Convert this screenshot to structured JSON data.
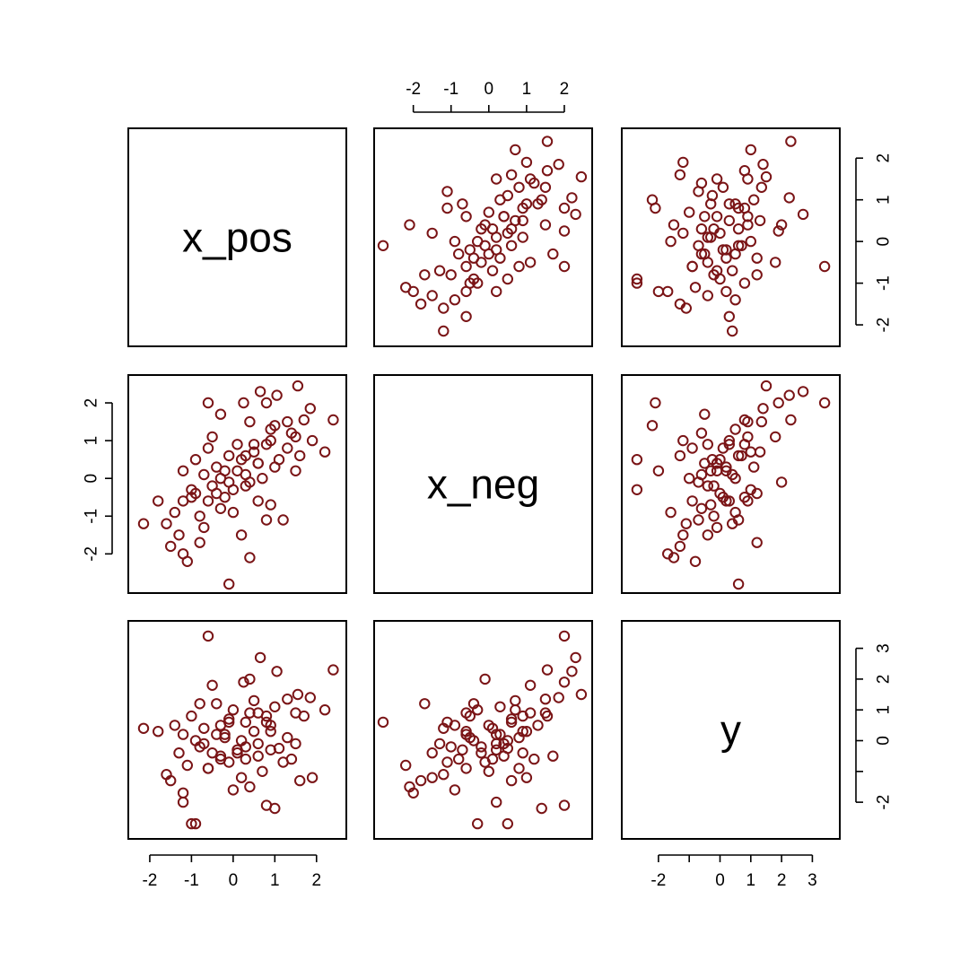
{
  "chart_data": {
    "type": "scatter-matrix",
    "point_color": "#7a1416",
    "marker": "open-circle",
    "variables": [
      {
        "name": "x_pos",
        "range": [
          -2.3,
          2.5
        ],
        "ticks": [
          -2,
          -1,
          0,
          1,
          2
        ],
        "tick_labels": [
          "-2",
          "-1",
          "0",
          "1",
          "2"
        ]
      },
      {
        "name": "x_neg",
        "range": [
          -2.8,
          2.5
        ],
        "ticks": [
          -2,
          -1,
          0,
          1,
          2
        ],
        "tick_labels": [
          "-2",
          "-1",
          "0",
          "1",
          "2"
        ]
      },
      {
        "name": "y",
        "range": [
          -2.9,
          3.6
        ],
        "ticks": [
          -2,
          -1,
          0,
          1,
          2,
          3
        ],
        "tick_labels": [
          "-2",
          "",
          "0",
          "1",
          "2",
          "3"
        ]
      }
    ],
    "axes": {
      "top": [
        {
          "col": 1,
          "var": 1
        }
      ],
      "bottom": [
        {
          "col": 0,
          "var": 0
        },
        {
          "col": 2,
          "var": 2
        }
      ],
      "left": [
        {
          "row": 1,
          "var": 1
        }
      ],
      "right": [
        {
          "row": 0,
          "var": 0
        },
        {
          "row": 2,
          "var": 2
        }
      ]
    },
    "observations": [
      {
        "x_pos": 1.55,
        "x_neg": 2.45,
        "y": 1.5
      },
      {
        "x_pos": 1.85,
        "x_neg": 1.85,
        "y": 1.4
      },
      {
        "x_pos": 1.3,
        "x_neg": 1.5,
        "y": 1.35
      },
      {
        "x_pos": 0.65,
        "x_neg": 2.3,
        "y": 2.7
      },
      {
        "x_pos": 2.4,
        "x_neg": 1.55,
        "y": 2.3
      },
      {
        "x_pos": 0.25,
        "x_neg": 2.0,
        "y": 1.9
      },
      {
        "x_pos": 1.05,
        "x_neg": 2.2,
        "y": 2.25
      },
      {
        "x_pos": -0.6,
        "x_neg": 2.0,
        "y": 3.4
      },
      {
        "x_pos": 1.5,
        "x_neg": 1.1,
        "y": 0.9
      },
      {
        "x_pos": 1.7,
        "x_neg": 1.55,
        "y": 0.8
      },
      {
        "x_pos": 0.9,
        "x_neg": 1.3,
        "y": 0.5
      },
      {
        "x_pos": 0.4,
        "x_neg": 1.5,
        "y": 0.9
      },
      {
        "x_pos": 1.9,
        "x_neg": 1.0,
        "y": -1.2
      },
      {
        "x_pos": 0.8,
        "x_neg": 0.9,
        "y": 0.8
      },
      {
        "x_pos": 0.9,
        "x_neg": 1.0,
        "y": 0.3
      },
      {
        "x_pos": 1.3,
        "x_neg": 0.8,
        "y": 0.1
      },
      {
        "x_pos": 1.5,
        "x_neg": 0.2,
        "y": -0.1
      },
      {
        "x_pos": 1.1,
        "x_neg": 0.5,
        "y": -0.25
      },
      {
        "x_pos": 0.5,
        "x_neg": 0.9,
        "y": 0.3
      },
      {
        "x_pos": 0.6,
        "x_neg": 0.4,
        "y": -0.5
      },
      {
        "x_pos": 0.2,
        "x_neg": 0.5,
        "y": 0.0
      },
      {
        "x_pos": 0.3,
        "x_neg": 0.1,
        "y": -0.6
      },
      {
        "x_pos": -0.1,
        "x_neg": 0.6,
        "y": 0.7
      },
      {
        "x_pos": 0.1,
        "x_neg": 0.2,
        "y": -0.3
      },
      {
        "x_pos": -0.3,
        "x_neg": 0.0,
        "y": 0.5
      },
      {
        "x_pos": -0.1,
        "x_neg": -0.1,
        "y": -0.7
      },
      {
        "x_pos": -0.4,
        "x_neg": 0.3,
        "y": 0.2
      },
      {
        "x_pos": -0.5,
        "x_neg": -0.2,
        "y": -0.4
      },
      {
        "x_pos": -0.7,
        "x_neg": 0.1,
        "y": 0.4
      },
      {
        "x_pos": -0.2,
        "x_neg": -0.5,
        "y": 0.1
      },
      {
        "x_pos": -0.6,
        "x_neg": -0.6,
        "y": -0.9
      },
      {
        "x_pos": 0.0,
        "x_neg": -0.3,
        "y": 1.0
      },
      {
        "x_pos": -0.9,
        "x_neg": -0.4,
        "y": 0.0
      },
      {
        "x_pos": -0.3,
        "x_neg": -0.8,
        "y": -0.6
      },
      {
        "x_pos": -1.0,
        "x_neg": -0.5,
        "y": 0.8
      },
      {
        "x_pos": -0.8,
        "x_neg": -1.0,
        "y": -0.2
      },
      {
        "x_pos": -1.2,
        "x_neg": -0.6,
        "y": 0.2
      },
      {
        "x_pos": -1.4,
        "x_neg": -0.9,
        "y": 0.5
      },
      {
        "x_pos": -1.6,
        "x_neg": -1.2,
        "y": -1.1
      },
      {
        "x_pos": -1.3,
        "x_neg": -1.5,
        "y": -0.4
      },
      {
        "x_pos": -1.8,
        "x_neg": -0.6,
        "y": 0.3
      },
      {
        "x_pos": -2.15,
        "x_neg": -1.2,
        "y": 0.4
      },
      {
        "x_pos": -1.1,
        "x_neg": -2.2,
        "y": -0.8
      },
      {
        "x_pos": -1.5,
        "x_neg": -1.8,
        "y": -1.3
      },
      {
        "x_pos": -1.2,
        "x_neg": -2.0,
        "y": -1.7
      },
      {
        "x_pos": -0.8,
        "x_neg": -1.7,
        "y": 1.2
      },
      {
        "x_pos": 0.2,
        "x_neg": -1.5,
        "y": -1.2
      },
      {
        "x_pos": 0.4,
        "x_neg": -2.1,
        "y": -1.5
      },
      {
        "x_pos": 1.2,
        "x_neg": -1.1,
        "y": -0.7
      },
      {
        "x_pos": -0.1,
        "x_neg": -2.8,
        "y": 0.6
      },
      {
        "x_pos": 0.8,
        "x_neg": -1.1,
        "y": 0.6
      },
      {
        "x_pos": 0.6,
        "x_neg": -0.6,
        "y": 0.9
      },
      {
        "x_pos": 0.3,
        "x_neg": -0.2,
        "y": -0.2
      },
      {
        "x_pos": 1.0,
        "x_neg": 0.3,
        "y": 1.1
      },
      {
        "x_pos": 0.5,
        "x_neg": 0.7,
        "y": 1.3
      },
      {
        "x_pos": -0.4,
        "x_neg": -0.4,
        "y": 1.2
      },
      {
        "x_pos": 0.1,
        "x_neg": 0.9,
        "y": -0.4
      },
      {
        "x_pos": -0.7,
        "x_neg": -1.3,
        "y": -0.1
      },
      {
        "x_pos": 1.4,
        "x_neg": 1.2,
        "y": -0.6
      },
      {
        "x_pos": 0.7,
        "x_neg": 0.0,
        "y": -1.0
      },
      {
        "x_pos": -0.5,
        "x_neg": 1.1,
        "y": 1.8
      },
      {
        "x_pos": 0.9,
        "x_neg": -0.7,
        "y": -0.3
      },
      {
        "x_pos": -0.2,
        "x_neg": 0.2,
        "y": 0.2
      },
      {
        "x_pos": 0.3,
        "x_neg": 0.6,
        "y": 0.6
      },
      {
        "x_pos": -0.9,
        "x_neg": 0.5,
        "y": -2.7
      },
      {
        "x_pos": -1.0,
        "x_neg": -0.3,
        "y": -2.7
      },
      {
        "x_pos": -0.3,
        "x_neg": 1.7,
        "y": -0.5
      },
      {
        "x_pos": 1.0,
        "x_neg": 1.4,
        "y": -2.2
      },
      {
        "x_pos": 0.8,
        "x_neg": 2.0,
        "y": -2.1
      },
      {
        "x_pos": 2.2,
        "x_neg": 0.7,
        "y": 1.0
      },
      {
        "x_pos": -1.2,
        "x_neg": 0.2,
        "y": -2.0
      },
      {
        "x_pos": 0.0,
        "x_neg": -0.9,
        "y": -1.6
      },
      {
        "x_pos": 1.6,
        "x_neg": 0.6,
        "y": -1.3
      },
      {
        "x_pos": -0.6,
        "x_neg": 0.8,
        "y": -0.9
      },
      {
        "x_pos": 0.4,
        "x_neg": -0.1,
        "y": 2.0
      },
      {
        "x_pos": 0.6,
        "x_neg": 0.4,
        "y": -0.1
      }
    ]
  }
}
